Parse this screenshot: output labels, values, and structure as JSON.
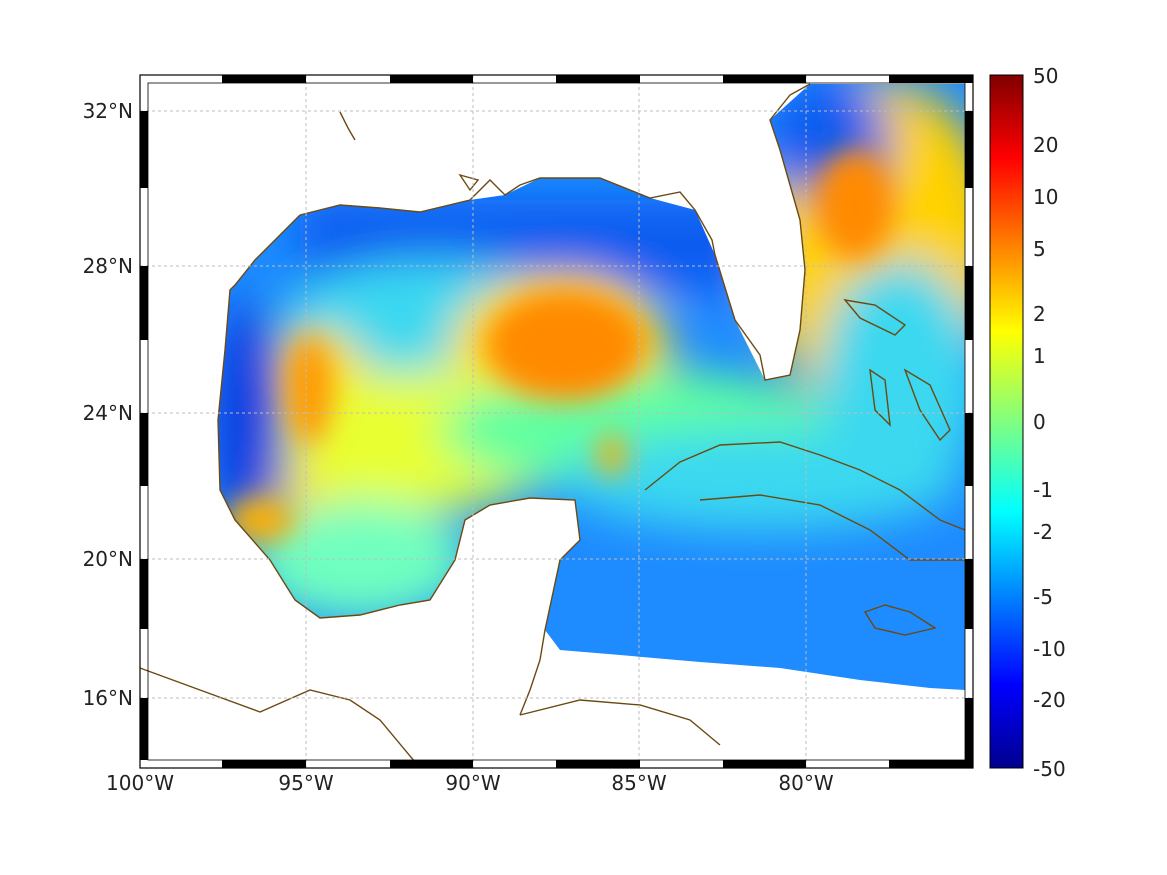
{
  "map": {
    "type": "heatmap",
    "x_ticks": [
      {
        "value": -100,
        "label": "100°W"
      },
      {
        "value": -95,
        "label": "95°W"
      },
      {
        "value": -90,
        "label": "90°W"
      },
      {
        "value": -85,
        "label": "85°W"
      },
      {
        "value": -80,
        "label": "80°W"
      }
    ],
    "y_ticks": [
      {
        "value": 32,
        "label": "32°N"
      },
      {
        "value": 28,
        "label": "28°N"
      },
      {
        "value": 24,
        "label": "24°N"
      },
      {
        "value": 20,
        "label": "20°N"
      },
      {
        "value": 16,
        "label": "16°N"
      }
    ],
    "xlim": [
      -100,
      -75
    ],
    "ylim": [
      14.6,
      33
    ],
    "grid": true,
    "coastline_color": "#6b4a12",
    "colorbar": {
      "ticks": [
        {
          "value": 50,
          "label": "50"
        },
        {
          "value": 20,
          "label": "20"
        },
        {
          "value": 10,
          "label": "10"
        },
        {
          "value": 5,
          "label": "5"
        },
        {
          "value": 2,
          "label": "2"
        },
        {
          "value": 1,
          "label": "1"
        },
        {
          "value": 0,
          "label": "0"
        },
        {
          "value": -1,
          "label": "-1"
        },
        {
          "value": -2,
          "label": "-2"
        },
        {
          "value": -5,
          "label": "-5"
        },
        {
          "value": -10,
          "label": "-10"
        },
        {
          "value": -20,
          "label": "-20"
        },
        {
          "value": -50,
          "label": "-50"
        }
      ],
      "colormap": "jet"
    }
  }
}
